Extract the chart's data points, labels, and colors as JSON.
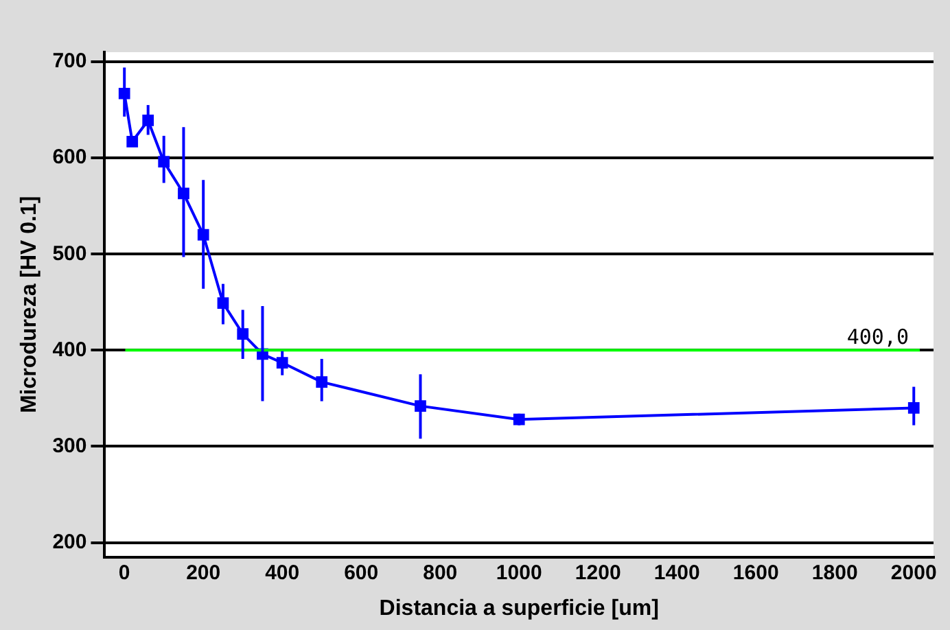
{
  "chart_data": {
    "type": "line",
    "xlabel": "Distancia a superficie [um]",
    "ylabel": "Microdureza [HV 0.1]",
    "x": [
      0,
      20,
      60,
      100,
      150,
      200,
      250,
      300,
      350,
      400,
      500,
      750,
      1000,
      2000
    ],
    "series": [
      {
        "color": "#0000ff",
        "values": [
          667,
          617,
          639,
          596,
          563,
          520,
          449,
          417,
          396,
          387,
          367,
          342,
          328,
          340
        ],
        "errors": [
          [
            643,
            694
          ],
          null,
          [
            624,
            655
          ],
          [
            574,
            623
          ],
          [
            497,
            632
          ],
          [
            464,
            577
          ],
          [
            427,
            469
          ],
          [
            391,
            442
          ],
          [
            347,
            446
          ],
          [
            374,
            399
          ],
          [
            347,
            391
          ],
          [
            308,
            375
          ],
          [
            322,
            334
          ],
          [
            322,
            362
          ]
        ]
      }
    ],
    "xlim": [
      -50,
      2050
    ],
    "xticks": [
      0,
      200,
      400,
      600,
      800,
      1000,
      1200,
      1400,
      1600,
      1800,
      2000
    ],
    "ylim": [
      185,
      710
    ],
    "yticks": [
      200,
      300,
      400,
      500,
      600,
      700
    ],
    "grid": "y",
    "legend": false,
    "marker": "square",
    "line_style": "solid",
    "ref_lines": [
      {
        "axis": "y",
        "value": 400,
        "label": "400,0",
        "color": "#00ff00"
      }
    ]
  }
}
